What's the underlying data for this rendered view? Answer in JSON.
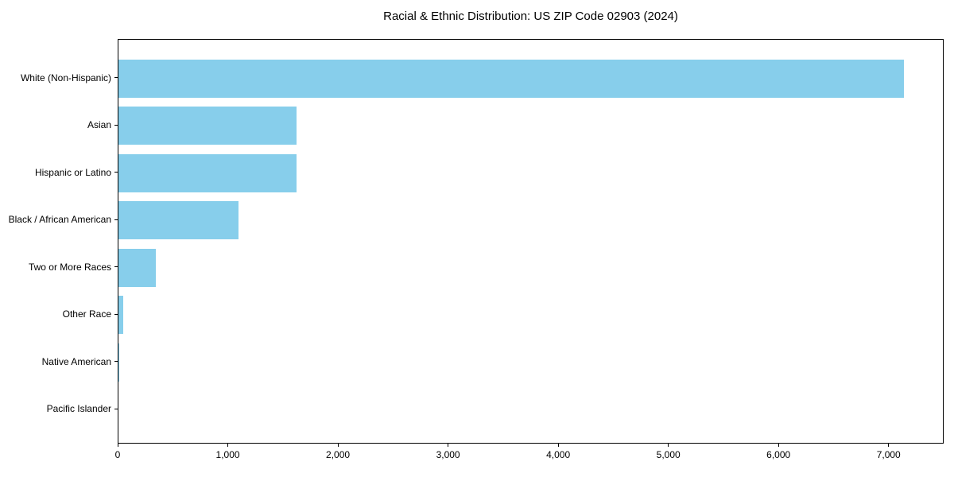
{
  "title": "Racial & Ethnic Distribution: US ZIP Code 02903 (2024)",
  "chart_data": {
    "type": "bar",
    "orientation": "horizontal",
    "title": "Racial & Ethnic Distribution: US ZIP Code 02903 (2024)",
    "xlabel": "",
    "ylabel": "",
    "categories": [
      "White (Non-Hispanic)",
      "Asian",
      "Hispanic or Latino",
      "Black / African American",
      "Two or More Races",
      "Other Race",
      "Native American",
      "Pacific Islander"
    ],
    "values": [
      7130,
      1620,
      1615,
      1090,
      340,
      43,
      6,
      0
    ],
    "xlim": [
      0,
      7500
    ],
    "x_ticks": [
      0,
      1000,
      2000,
      3000,
      4000,
      5000,
      6000,
      7000
    ],
    "x_tick_labels": [
      "0",
      "1,000",
      "2,000",
      "3,000",
      "4,000",
      "5,000",
      "6,000",
      "7,000"
    ],
    "bar_color": "#87CEEB",
    "axis_color": "#000000",
    "text_color": "#000000",
    "background_color": "#ffffff",
    "grid": false,
    "legend": "none"
  }
}
